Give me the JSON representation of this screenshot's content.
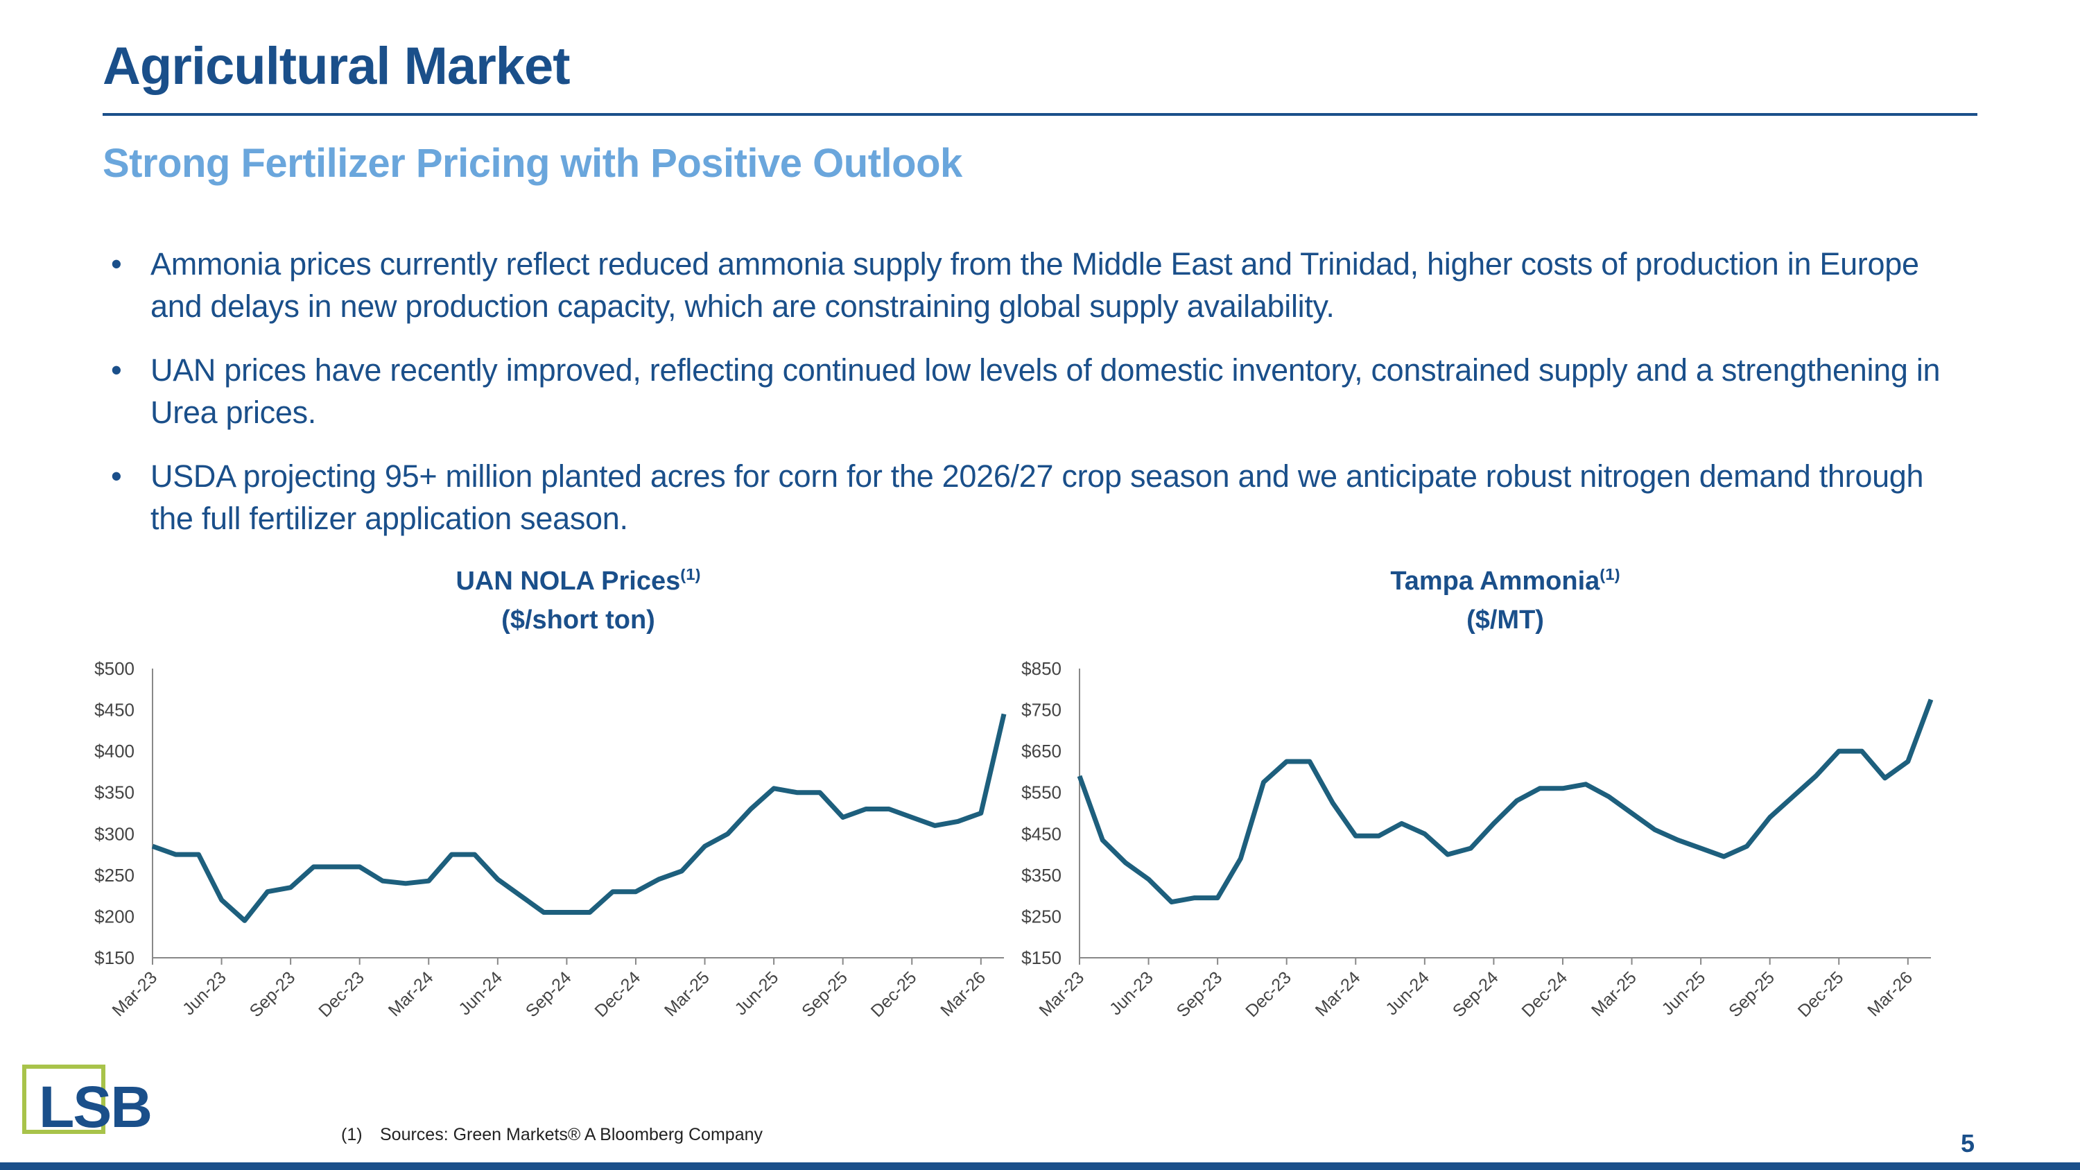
{
  "header": {
    "title": "Agricultural Market",
    "subtitle": "Strong Fertilizer Pricing with Positive Outlook"
  },
  "bullets": [
    "Ammonia prices currently reflect reduced ammonia supply from the Middle East and Trinidad, higher costs of production in Europe and delays in new production capacity, which are constraining global supply availability.",
    "UAN prices have recently improved, reflecting continued low levels of domestic inventory, constrained supply and a strengthening in Urea prices.",
    "USDA projecting 95+ million planted acres for corn for the 2026/27 crop season and we anticipate robust nitrogen demand through the full fertilizer application season."
  ],
  "chart_data": [
    {
      "type": "line",
      "title": "UAN NOLA Prices",
      "title_note": "(1)",
      "subtitle": "($/short ton)",
      "categories": [
        "Mar-23",
        null,
        null,
        "Jun-23",
        null,
        null,
        "Sep-23",
        null,
        null,
        "Dec-23",
        null,
        null,
        "Mar-24",
        null,
        null,
        "Jun-24",
        null,
        null,
        "Sep-24",
        null,
        null,
        "Dec-24",
        null,
        null,
        "Mar-25",
        null,
        null,
        "Jun-25",
        null,
        null,
        "Sep-25",
        null,
        null,
        "Dec-25",
        null,
        null,
        "Mar-26",
        null
      ],
      "series": [
        {
          "name": "UAN NOLA",
          "color": "#1d5f7d",
          "values": [
            285,
            275,
            275,
            220,
            195,
            230,
            235,
            260,
            260,
            260,
            243,
            240,
            243,
            275,
            275,
            245,
            225,
            205,
            205,
            205,
            230,
            230,
            245,
            255,
            285,
            300,
            330,
            355,
            350,
            350,
            320,
            330,
            330,
            320,
            310,
            315,
            325,
            445
          ]
        }
      ],
      "ylim": [
        150,
        500
      ],
      "yticks": [
        {
          "value": 150,
          "label": "$150"
        },
        {
          "value": 200,
          "label": "$200"
        },
        {
          "value": 250,
          "label": "$250"
        },
        {
          "value": 300,
          "label": "$300"
        },
        {
          "value": 350,
          "label": "$350"
        },
        {
          "value": 400,
          "label": "$400"
        },
        {
          "value": 450,
          "label": "$450"
        },
        {
          "value": 500,
          "label": "$500"
        }
      ],
      "grid": false
    },
    {
      "type": "line",
      "title": "Tampa Ammonia",
      "title_note": "(1)",
      "subtitle": "($/MT)",
      "categories": [
        "Mar-23",
        null,
        null,
        "Jun-23",
        null,
        null,
        "Sep-23",
        null,
        null,
        "Dec-23",
        null,
        null,
        "Mar-24",
        null,
        null,
        "Jun-24",
        null,
        null,
        "Sep-24",
        null,
        null,
        "Dec-24",
        null,
        null,
        "Mar-25",
        null,
        null,
        "Jun-25",
        null,
        null,
        "Sep-25",
        null,
        null,
        "Dec-25",
        null,
        null,
        "Mar-26",
        null
      ],
      "series": [
        {
          "name": "Tampa Ammonia",
          "color": "#1d5f7d",
          "values": [
            590,
            435,
            380,
            340,
            285,
            295,
            295,
            390,
            575,
            625,
            625,
            525,
            445,
            445,
            475,
            450,
            400,
            415,
            475,
            530,
            560,
            560,
            570,
            540,
            500,
            460,
            435,
            415,
            395,
            420,
            490,
            540,
            590,
            650,
            650,
            585,
            625,
            775
          ]
        }
      ],
      "ylim": [
        150,
        850
      ],
      "yticks": [
        {
          "value": 150,
          "label": "$150"
        },
        {
          "value": 250,
          "label": "$250"
        },
        {
          "value": 350,
          "label": "$350"
        },
        {
          "value": 450,
          "label": "$450"
        },
        {
          "value": 550,
          "label": "$550"
        },
        {
          "value": 650,
          "label": "$650"
        },
        {
          "value": 750,
          "label": "$750"
        },
        {
          "value": 850,
          "label": "$850"
        }
      ],
      "grid": false
    }
  ],
  "footnote": {
    "marker": "(1)",
    "text": "Sources: Green Markets® A Bloomberg Company"
  },
  "logo": {
    "text": "LSB"
  },
  "page_number": "5"
}
